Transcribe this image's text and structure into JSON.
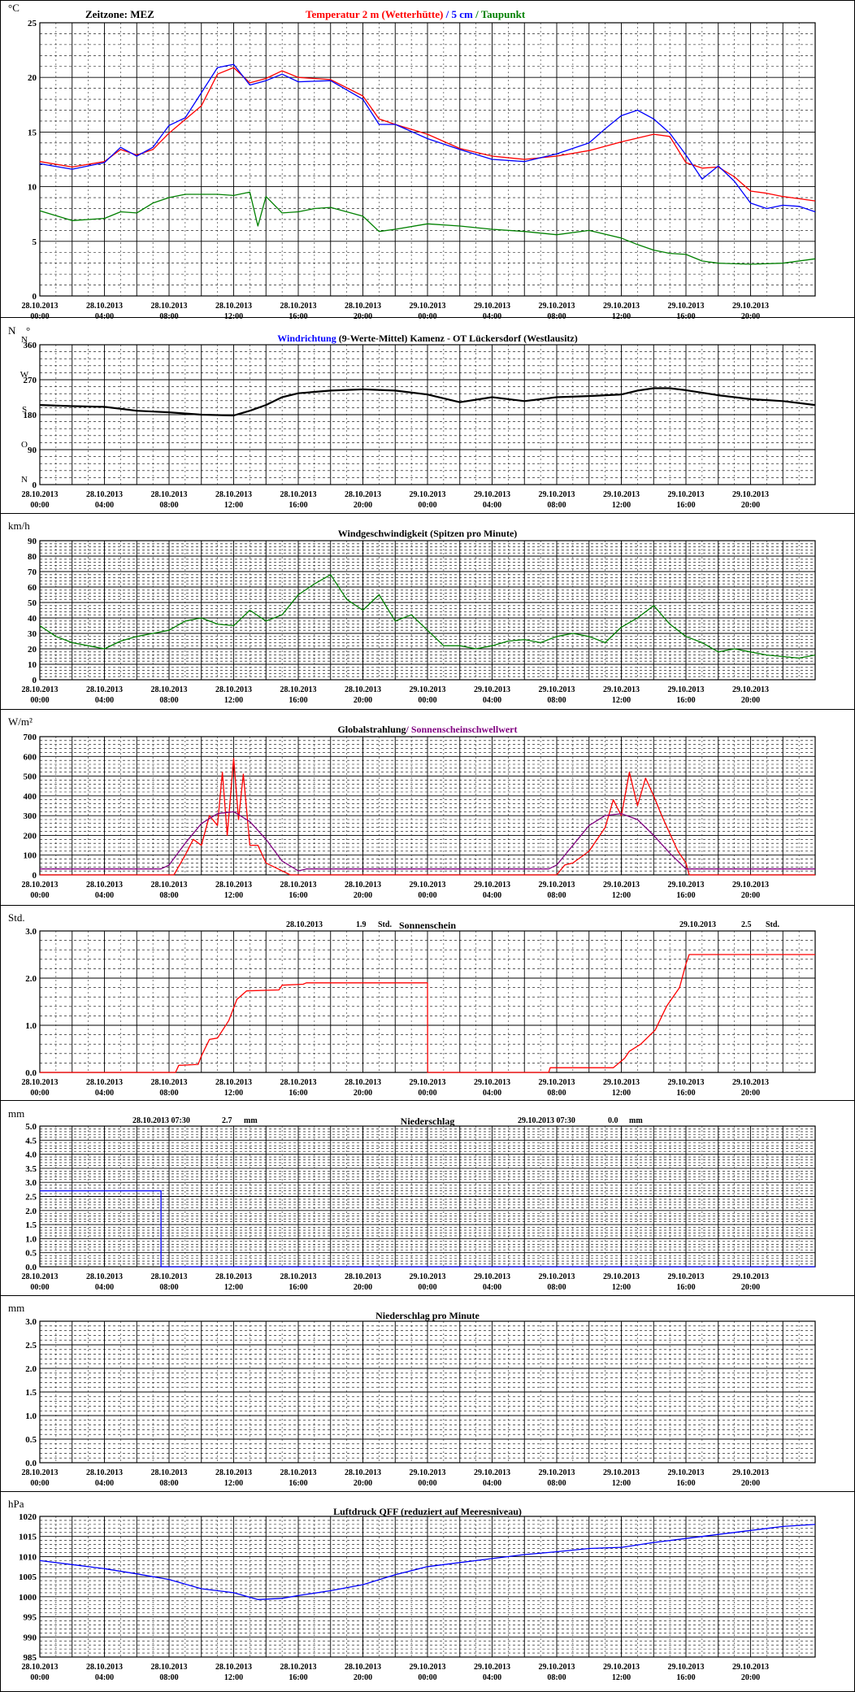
{
  "time_ticks": {
    "labels": [
      [
        "28.10.2013",
        "00:00"
      ],
      [
        "28.10.2013",
        "04:00"
      ],
      [
        "28.10.2013",
        "08:00"
      ],
      [
        "28.10.2013",
        "12:00"
      ],
      [
        "28.10.2013",
        "16:00"
      ],
      [
        "28.10.2013",
        "20:00"
      ],
      [
        "29.10.2013",
        "00:00"
      ],
      [
        "29.10.2013",
        "04:00"
      ],
      [
        "29.10.2013",
        "08:00"
      ],
      [
        "29.10.2013",
        "12:00"
      ],
      [
        "29.10.2013",
        "16:00"
      ],
      [
        "29.10.2013",
        "20:00"
      ]
    ]
  },
  "colors": {
    "red": "#ff0000",
    "blue": "#0000ff",
    "green": "#008000",
    "black": "#000000",
    "purple": "#800080",
    "grid": "#000000"
  },
  "chart_data": [
    {
      "id": "temperature",
      "type": "line",
      "unit": "°C",
      "header_left": "Zeitzone: MEZ",
      "header_parts": [
        {
          "text": "Temperatur 2 m (Wetterhütte)",
          "color": "red"
        },
        {
          "text": "  /  ",
          "color": "blue"
        },
        {
          "text": "5 cm",
          "color": "blue"
        },
        {
          "text": " / ",
          "color": "green"
        },
        {
          "text": "Taupunkt",
          "color": "green"
        }
      ],
      "ylim": [
        0,
        25
      ],
      "yticks": [
        0,
        5,
        10,
        15,
        20,
        25
      ],
      "x_hours": [
        0,
        48
      ],
      "series": [
        {
          "name": "Temperatur 2 m (Wetterhütte)",
          "color": "red",
          "x": [
            0,
            2,
            4,
            5,
            6,
            7,
            8,
            10,
            11,
            12,
            13,
            14,
            15,
            16,
            18,
            20,
            21,
            22,
            24,
            26,
            28,
            30,
            32,
            34,
            36,
            38,
            39,
            40,
            41,
            42,
            43,
            44,
            45,
            46,
            47,
            48
          ],
          "y": [
            12.3,
            11.8,
            12.3,
            13.4,
            12.9,
            13.4,
            14.9,
            17.4,
            20.3,
            20.9,
            19.5,
            19.9,
            20.6,
            20.0,
            19.8,
            18.3,
            16.2,
            15.7,
            14.8,
            13.5,
            12.8,
            12.5,
            12.8,
            13.3,
            14.1,
            14.8,
            14.6,
            12.2,
            11.7,
            11.8,
            10.9,
            9.6,
            9.4,
            9.1,
            8.9,
            8.7
          ]
        },
        {
          "name": "5 cm",
          "color": "blue",
          "x": [
            0,
            2,
            4,
            5,
            6,
            7,
            8,
            9,
            10,
            11,
            12,
            13,
            14,
            15,
            16,
            18,
            20,
            21,
            22,
            24,
            26,
            28,
            30,
            32,
            34,
            35,
            36,
            37,
            38,
            39,
            40,
            41,
            42,
            43,
            44,
            45,
            46,
            47,
            48
          ],
          "y": [
            12.1,
            11.6,
            12.2,
            13.6,
            12.8,
            13.6,
            15.6,
            16.3,
            18.6,
            20.9,
            21.2,
            19.3,
            19.7,
            20.3,
            19.6,
            19.7,
            18.0,
            15.7,
            15.7,
            14.4,
            13.4,
            12.5,
            12.3,
            13.0,
            14.0,
            15.3,
            16.5,
            17.0,
            16.2,
            14.9,
            12.9,
            10.7,
            11.9,
            10.5,
            8.5,
            8.0,
            8.3,
            8.2,
            7.7
          ]
        },
        {
          "name": "Taupunkt",
          "color": "green",
          "x": [
            0,
            2,
            4,
            5,
            6,
            7,
            8,
            9,
            10,
            11,
            12,
            13,
            13.5,
            14,
            15,
            16,
            17,
            18,
            20,
            21,
            22,
            24,
            26,
            28,
            30,
            32,
            34,
            36,
            37,
            38,
            39,
            40,
            41,
            42,
            44,
            46,
            48
          ],
          "y": [
            7.8,
            6.9,
            7.1,
            7.7,
            7.6,
            8.5,
            9.0,
            9.3,
            9.3,
            9.3,
            9.2,
            9.5,
            6.4,
            9.1,
            7.6,
            7.7,
            8.0,
            8.1,
            7.3,
            5.9,
            6.1,
            6.6,
            6.4,
            6.1,
            5.9,
            5.6,
            6.0,
            5.3,
            4.7,
            4.2,
            3.9,
            3.8,
            3.2,
            3.0,
            2.9,
            3.0,
            3.4
          ]
        }
      ]
    },
    {
      "id": "wind_direction",
      "type": "line",
      "unit": "N",
      "unit_suffix": "°",
      "header_parts": [
        {
          "text": "Windrichtung",
          "color": "blue"
        },
        {
          "text": " (9-Werte-Mittel)",
          "color": "black"
        },
        {
          "text": "           Kamenz - OT Lückersdorf (Westlausitz)",
          "color": "black"
        }
      ],
      "ylim": [
        0,
        360
      ],
      "yticks": [
        0,
        90,
        180,
        270,
        360
      ],
      "compass_labels": [
        {
          "value": 0,
          "text": "N"
        },
        {
          "value": 90,
          "text": "O"
        },
        {
          "value": 180,
          "text": "S"
        },
        {
          "value": 270,
          "text": "W"
        },
        {
          "value": 360,
          "text": "N"
        }
      ],
      "x_hours": [
        0,
        48
      ],
      "series": [
        {
          "name": "Windrichtung",
          "color": "blue",
          "x": [
            0,
            2,
            4,
            6,
            8,
            10,
            12,
            13,
            14,
            15,
            16,
            18,
            20,
            22,
            24,
            26,
            28,
            30,
            32,
            34,
            36,
            37,
            38,
            39,
            40,
            42,
            44,
            46,
            48
          ],
          "y": [
            205,
            202,
            200,
            190,
            186,
            180,
            178,
            190,
            205,
            225,
            235,
            242,
            245,
            242,
            232,
            212,
            225,
            215,
            225,
            228,
            232,
            242,
            248,
            248,
            243,
            230,
            220,
            215,
            205
          ]
        },
        {
          "name": "9-Werte-Mittel",
          "color": "black",
          "x": [
            0,
            2,
            4,
            6,
            8,
            10,
            12,
            13,
            14,
            15,
            16,
            18,
            20,
            22,
            24,
            26,
            28,
            30,
            32,
            34,
            36,
            37,
            38,
            39,
            40,
            42,
            44,
            46,
            48
          ],
          "y": [
            205,
            202,
            200,
            190,
            186,
            180,
            178,
            190,
            205,
            225,
            235,
            242,
            245,
            242,
            232,
            212,
            225,
            215,
            225,
            228,
            232,
            242,
            248,
            248,
            243,
            230,
            220,
            215,
            205
          ]
        }
      ]
    },
    {
      "id": "wind_speed",
      "type": "line",
      "unit": "km/h",
      "header_parts": [
        {
          "text": "Windgeschwindigkeit (Spitzen pro Minute)",
          "color": "black"
        }
      ],
      "ylim": [
        0,
        90
      ],
      "yticks": [
        0,
        10,
        20,
        30,
        40,
        50,
        60,
        70,
        80,
        90
      ],
      "x_hours": [
        0,
        48
      ],
      "series": [
        {
          "name": "Windgeschwindigkeit",
          "color": "green",
          "x": [
            0,
            1,
            2,
            3,
            4,
            5,
            6,
            7,
            8,
            9,
            10,
            11,
            12,
            13,
            14,
            15,
            16,
            17,
            18,
            19,
            20,
            21,
            22,
            23,
            24,
            25,
            26,
            27,
            28,
            29,
            30,
            31,
            32,
            33,
            34,
            35,
            36,
            37,
            38,
            39,
            40,
            41,
            42,
            43,
            44,
            45,
            46,
            47,
            48
          ],
          "y": [
            35,
            28,
            24,
            22,
            20,
            25,
            28,
            30,
            32,
            38,
            40,
            36,
            35,
            45,
            38,
            42,
            55,
            62,
            68,
            52,
            45,
            55,
            38,
            42,
            32,
            22,
            22,
            20,
            22,
            25,
            26,
            24,
            28,
            30,
            28,
            24,
            34,
            40,
            48,
            36,
            28,
            24,
            18,
            20,
            18,
            16,
            15,
            14,
            16
          ]
        }
      ]
    },
    {
      "id": "radiation",
      "type": "line",
      "unit": "W/m²",
      "header_parts": [
        {
          "text": "Globalstrahlung",
          "color": "black"
        },
        {
          "text": "/ Sonnenscheinschwellwert",
          "color": "purple"
        }
      ],
      "ylim": [
        0,
        700
      ],
      "yticks": [
        0,
        100,
        200,
        300,
        400,
        500,
        600,
        700
      ],
      "x_hours": [
        0,
        48
      ],
      "series": [
        {
          "name": "Globalstrahlung",
          "color": "red",
          "x": [
            0,
            8.3,
            9,
            9.5,
            10,
            10.5,
            11,
            11.3,
            11.6,
            12,
            12.3,
            12.6,
            13,
            13.5,
            14,
            15,
            15.5,
            24,
            32,
            32.5,
            33,
            34,
            35,
            35.5,
            36,
            36.5,
            37,
            37.5,
            38,
            38.5,
            39,
            39.5,
            40,
            40.2,
            48
          ],
          "y": [
            0,
            0,
            100,
            180,
            150,
            300,
            250,
            520,
            200,
            590,
            280,
            510,
            150,
            150,
            60,
            20,
            0,
            0,
            0,
            50,
            60,
            120,
            240,
            380,
            300,
            520,
            350,
            490,
            400,
            300,
            210,
            120,
            60,
            0,
            0
          ]
        },
        {
          "name": "Sonnenscheinschwellwert",
          "color": "purple",
          "x": [
            0,
            7.5,
            8,
            9,
            10,
            11,
            12,
            13,
            14,
            15,
            16,
            16.5,
            31.5,
            32,
            33,
            34,
            35,
            36,
            37,
            38,
            39,
            40,
            40.5,
            48
          ],
          "y": [
            30,
            30,
            50,
            160,
            260,
            310,
            320,
            270,
            180,
            70,
            20,
            30,
            30,
            50,
            150,
            250,
            300,
            310,
            280,
            200,
            110,
            30,
            30,
            30
          ]
        }
      ]
    },
    {
      "id": "sunshine",
      "type": "line",
      "unit": "Std.",
      "header_parts": [
        {
          "text": "Sonnenschein",
          "color": "black"
        }
      ],
      "header_notes": [
        {
          "date": "28.10.2013",
          "value": "1.9",
          "unit": "Std."
        },
        {
          "date": "29.10.2013",
          "value": "2.5",
          "unit": "Std."
        }
      ],
      "ylim": [
        0,
        3
      ],
      "yticks": [
        0,
        1,
        2,
        3
      ],
      "ytick_labels": [
        "0.0",
        "1.0",
        "2.0",
        "3.0"
      ],
      "x_hours": [
        0,
        48
      ],
      "series": [
        {
          "name": "Sonnenschein",
          "color": "red",
          "x": [
            0,
            8.4,
            8.6,
            9.8,
            10.0,
            10.5,
            11.0,
            11.7,
            12.2,
            12.8,
            14.8,
            15.0,
            16.3,
            16.5,
            24.0,
            24.01,
            31.5,
            31.6,
            35.5,
            36.2,
            36.5,
            37.2,
            38.1,
            38.8,
            39.6,
            40.0,
            40.2,
            48
          ],
          "y": [
            0,
            0,
            0.15,
            0.17,
            0.35,
            0.7,
            0.73,
            1.1,
            1.55,
            1.73,
            1.75,
            1.85,
            1.87,
            1.9,
            1.9,
            0,
            0,
            0.1,
            0.1,
            0.3,
            0.45,
            0.6,
            0.9,
            1.4,
            1.8,
            2.3,
            2.5,
            2.5
          ]
        }
      ]
    },
    {
      "id": "precipitation",
      "type": "line",
      "unit": "mm",
      "header_parts": [
        {
          "text": "Niederschlag",
          "color": "black"
        }
      ],
      "header_notes": [
        {
          "date": "28.10.2013 07:30",
          "value": "2.7",
          "unit": "mm"
        },
        {
          "date": "29.10.2013 07:30",
          "value": "0.0",
          "unit": "mm"
        }
      ],
      "ylim": [
        0,
        5
      ],
      "yticks": [
        0,
        0.5,
        1,
        1.5,
        2,
        2.5,
        3,
        3.5,
        4,
        4.5,
        5
      ],
      "ytick_labels": [
        "0.0",
        "0.5",
        "1.0",
        "1.5",
        "2.0",
        "2.5",
        "3.0",
        "3.5",
        "4.0",
        "4.5",
        "5.0"
      ],
      "x_hours": [
        0,
        48
      ],
      "series": [
        {
          "name": "Niederschlag",
          "color": "blue",
          "x": [
            0,
            7.5,
            7.5,
            48
          ],
          "y": [
            2.7,
            2.7,
            0,
            0
          ]
        }
      ]
    },
    {
      "id": "precip_minute",
      "type": "line",
      "unit": "mm",
      "header_parts": [
        {
          "text": "Niederschlag pro Minute",
          "color": "black"
        }
      ],
      "ylim": [
        0,
        3
      ],
      "yticks": [
        0,
        0.5,
        1,
        1.5,
        2,
        2.5,
        3
      ],
      "ytick_labels": [
        "0.0",
        "0.5",
        "1.0",
        "1.5",
        "2.0",
        "2.5",
        "3.0"
      ],
      "x_hours": [
        0,
        48
      ],
      "series": []
    },
    {
      "id": "pressure",
      "type": "line",
      "unit": "hPa",
      "header_parts": [
        {
          "text": "Luftdruck QFF (reduziert auf Meeresniveau)",
          "color": "black"
        }
      ],
      "ylim": [
        985,
        1020
      ],
      "yticks": [
        985,
        990,
        995,
        1000,
        1005,
        1010,
        1015,
        1020
      ],
      "x_hours": [
        0,
        48
      ],
      "series": [
        {
          "name": "Luftdruck QFF",
          "color": "blue",
          "x": [
            0,
            2,
            4,
            6,
            8,
            10,
            12,
            13.5,
            15,
            16,
            18,
            20,
            22,
            24,
            26,
            28,
            30,
            32,
            34,
            36,
            38,
            40,
            42,
            44,
            46,
            48
          ],
          "y": [
            1009,
            1008,
            1007,
            1005.7,
            1004.3,
            1002,
            1001,
            999.3,
            999.6,
            1000.3,
            1001.5,
            1003,
            1005.5,
            1007.5,
            1008.5,
            1009.5,
            1010.5,
            1011.2,
            1012,
            1012.3,
            1013.5,
            1014.5,
            1015.5,
            1016.5,
            1017.5,
            1018
          ]
        }
      ]
    }
  ]
}
